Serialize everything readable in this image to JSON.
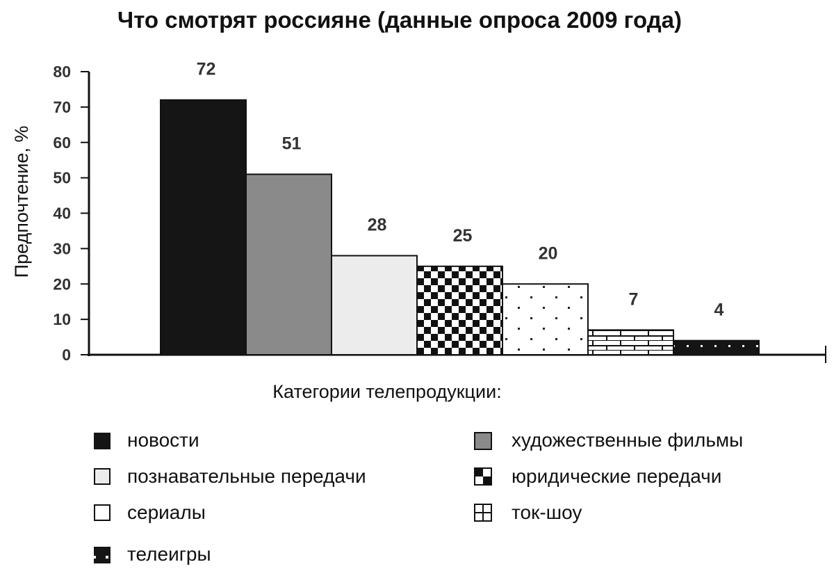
{
  "chart_data": {
    "type": "bar",
    "title": "Что смотрят россияне (данные опроса 2009 года)",
    "ylabel": "Предпочтение, %",
    "xlabel": "Категории телепродукции:",
    "ylim": [
      0,
      80
    ],
    "yticks": [
      0,
      10,
      20,
      30,
      40,
      50,
      60,
      70,
      80
    ],
    "grid": false,
    "legend_position": "bottom",
    "categories": [
      "новости",
      "художественные фильмы",
      "познавательные передачи",
      "юридические передачи",
      "сериалы",
      "ток-шоу",
      "телеигры"
    ],
    "values": [
      72,
      51,
      28,
      25,
      20,
      7,
      4
    ],
    "data_labels": [
      "72",
      "51",
      "28",
      "25",
      "20",
      "7",
      "4"
    ],
    "fills": [
      "solid-black",
      "solid-gray",
      "light-gray",
      "checkerboard",
      "dots",
      "bricks",
      "dark-dots"
    ],
    "colors": {
      "black": "#151515",
      "gray": "#8a8a8a",
      "light": "#ececec"
    }
  }
}
